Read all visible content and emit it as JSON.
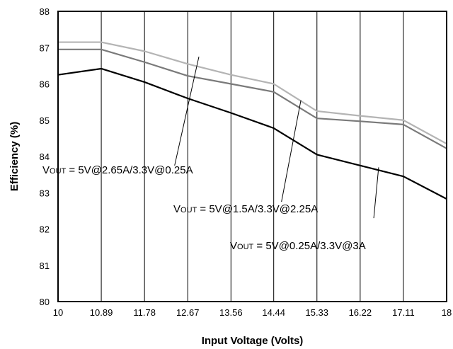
{
  "chart_data": {
    "type": "line",
    "title": "",
    "xlabel": "Input Voltage (Volts)",
    "ylabel": "Efficiency (%)",
    "xlim": [
      10,
      18
    ],
    "ylim": [
      80,
      88
    ],
    "grid": "vertical",
    "x_ticks": [
      "10",
      "10.89",
      "11.78",
      "12.67",
      "13.56",
      "14.44",
      "15.33",
      "16.22",
      "17.11",
      "18"
    ],
    "y_ticks": [
      "80",
      "81",
      "82",
      "83",
      "84",
      "85",
      "86",
      "87",
      "88"
    ],
    "x": [
      10,
      10.89,
      11.78,
      12.67,
      13.56,
      14.44,
      15.33,
      16.22,
      17.11,
      18
    ],
    "series": [
      {
        "values": [
          87.15,
          87.15,
          86.9,
          86.55,
          86.25,
          86.0,
          85.25,
          85.12,
          85.0,
          84.35
        ],
        "color": "#b4b4b4"
      },
      {
        "values": [
          86.95,
          86.95,
          86.6,
          86.22,
          86.0,
          85.78,
          85.05,
          84.97,
          84.88,
          84.22
        ],
        "color": "#7a7a7a"
      },
      {
        "values": [
          86.25,
          86.42,
          86.05,
          85.6,
          85.2,
          84.78,
          84.05,
          83.75,
          83.45,
          82.83
        ],
        "color": "#000000"
      }
    ],
    "annotations": [
      {
        "prefix": "V",
        "sub": "OUT",
        "text": " = 5V@2.65A/3.3V@0.25A",
        "anchor_x": 60,
        "anchor_y": 245,
        "line_x": [
          12.4,
          12.9
        ],
        "line_y": [
          83.75,
          86.75
        ]
      },
      {
        "prefix": "V",
        "sub": "OUT",
        "text": " = 5V@1.5A/3.3V@2.25A",
        "anchor_x": 245,
        "anchor_y": 300,
        "line_x": [
          14.6,
          15.0
        ],
        "line_y": [
          82.75,
          85.55
        ]
      },
      {
        "prefix": "V",
        "sub": "OUT",
        "text": " = 5V@0.25A/3.3V@3A",
        "anchor_x": 325,
        "anchor_y": 352,
        "line_x": [
          16.5,
          16.6
        ],
        "line_y": [
          82.3,
          83.7
        ]
      }
    ]
  }
}
